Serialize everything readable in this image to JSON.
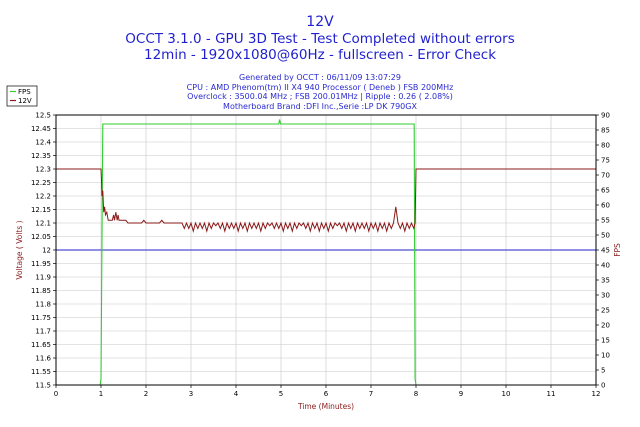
{
  "header": {
    "line1": "12V",
    "line2": "OCCT 3.1.0 - GPU 3D Test - Test Completed without errors",
    "line3": "12min - 1920x1080@60Hz - fullscreen - Error Check"
  },
  "info": [
    "Generated by OCCT : 06/11/09 13:07:29",
    "CPU : AMD Phenom(tm) II X4 940 Processor ( Deneb ) FSB 200MHz",
    "Overclock : 3500.04 MHz ; FSB 200.01MHz | Ripple : 0.26 ( 2.08%)",
    "Motherboard Brand :DFI Inc.,Serie :LP DK 790GX"
  ],
  "colors": {
    "fps": "#33cc33",
    "v12": "#8b1a1a",
    "reference": "#2222cc",
    "grid": "#c8c8c8"
  },
  "chart_data": {
    "type": "line",
    "xlabel": "Time (Minutes)",
    "ylabel_left": "Voltage ( Volts )",
    "ylabel_right": "FPS",
    "xlim": [
      0,
      12
    ],
    "ylim_left": [
      11.5,
      12.5
    ],
    "ylim_right": [
      0,
      90
    ],
    "x_ticks": [
      0,
      1,
      2,
      3,
      4,
      5,
      6,
      7,
      8,
      9,
      10,
      11,
      12
    ],
    "y_left_ticks": [
      11.5,
      11.55,
      11.6,
      11.65,
      11.7,
      11.75,
      11.8,
      11.85,
      11.9,
      11.95,
      12,
      12.05,
      12.1,
      12.15,
      12.2,
      12.25,
      12.3,
      12.35,
      12.4,
      12.45,
      12.5
    ],
    "y_right_ticks": [
      0,
      5,
      10,
      15,
      20,
      25,
      30,
      35,
      40,
      45,
      50,
      55,
      60,
      65,
      70,
      75,
      80,
      85,
      90
    ],
    "grid": true,
    "legend": {
      "placement": "top-left",
      "entries": [
        "FPS",
        "12V"
      ]
    },
    "reference_line": {
      "axis": "left",
      "y": 12.0
    },
    "series": [
      {
        "name": "FPS",
        "axis": "right",
        "points": [
          [
            0,
            0
          ],
          [
            0.98,
            0
          ],
          [
            1.0,
            2
          ],
          [
            1.04,
            87
          ],
          [
            4.95,
            87
          ],
          [
            4.97,
            88.5
          ],
          [
            4.99,
            87
          ],
          [
            7.96,
            87
          ],
          [
            7.98,
            2
          ],
          [
            8.0,
            0
          ],
          [
            12,
            0
          ]
        ]
      },
      {
        "name": "12V",
        "axis": "left",
        "points": [
          [
            0,
            12.3
          ],
          [
            1.0,
            12.3
          ],
          [
            1.01,
            12.26
          ],
          [
            1.02,
            12.2
          ],
          [
            1.04,
            12.22
          ],
          [
            1.06,
            12.14
          ],
          [
            1.08,
            12.16
          ],
          [
            1.1,
            12.13
          ],
          [
            1.13,
            12.14
          ],
          [
            1.16,
            12.11
          ],
          [
            1.25,
            12.11
          ],
          [
            1.28,
            12.13
          ],
          [
            1.3,
            12.11
          ],
          [
            1.33,
            12.14
          ],
          [
            1.36,
            12.11
          ],
          [
            1.38,
            12.13
          ],
          [
            1.4,
            12.11
          ],
          [
            1.55,
            12.11
          ],
          [
            1.6,
            12.1
          ],
          [
            1.9,
            12.1
          ],
          [
            1.95,
            12.11
          ],
          [
            2.0,
            12.1
          ],
          [
            2.3,
            12.1
          ],
          [
            2.35,
            12.11
          ],
          [
            2.4,
            12.1
          ],
          [
            2.7,
            12.1
          ],
          [
            2.8,
            12.1
          ],
          [
            2.85,
            12.08
          ],
          [
            2.9,
            12.1
          ],
          [
            2.95,
            12.08
          ],
          [
            3.0,
            12.1
          ],
          [
            3.05,
            12.07
          ],
          [
            3.1,
            12.1
          ],
          [
            3.15,
            12.08
          ],
          [
            3.2,
            12.1
          ],
          [
            3.25,
            12.08
          ],
          [
            3.3,
            12.1
          ],
          [
            3.35,
            12.07
          ],
          [
            3.4,
            12.1
          ],
          [
            3.45,
            12.08
          ],
          [
            3.5,
            12.1
          ],
          [
            3.55,
            12.09
          ],
          [
            3.6,
            12.1
          ],
          [
            3.65,
            12.08
          ],
          [
            3.7,
            12.1
          ],
          [
            3.75,
            12.07
          ],
          [
            3.8,
            12.1
          ],
          [
            3.85,
            12.08
          ],
          [
            3.9,
            12.1
          ],
          [
            3.95,
            12.08
          ],
          [
            4.0,
            12.1
          ],
          [
            4.05,
            12.07
          ],
          [
            4.1,
            12.1
          ],
          [
            4.15,
            12.08
          ],
          [
            4.2,
            12.1
          ],
          [
            4.25,
            12.07
          ],
          [
            4.3,
            12.1
          ],
          [
            4.35,
            12.08
          ],
          [
            4.4,
            12.1
          ],
          [
            4.45,
            12.08
          ],
          [
            4.5,
            12.1
          ],
          [
            4.55,
            12.07
          ],
          [
            4.6,
            12.1
          ],
          [
            4.65,
            12.08
          ],
          [
            4.7,
            12.1
          ],
          [
            4.75,
            12.09
          ],
          [
            4.8,
            12.1
          ],
          [
            4.85,
            12.08
          ],
          [
            4.9,
            12.1
          ],
          [
            4.95,
            12.08
          ],
          [
            5.0,
            12.1
          ],
          [
            5.05,
            12.07
          ],
          [
            5.1,
            12.1
          ],
          [
            5.15,
            12.08
          ],
          [
            5.2,
            12.1
          ],
          [
            5.25,
            12.07
          ],
          [
            5.3,
            12.1
          ],
          [
            5.35,
            12.08
          ],
          [
            5.4,
            12.1
          ],
          [
            5.45,
            12.09
          ],
          [
            5.5,
            12.1
          ],
          [
            5.55,
            12.08
          ],
          [
            5.6,
            12.1
          ],
          [
            5.65,
            12.07
          ],
          [
            5.7,
            12.1
          ],
          [
            5.75,
            12.08
          ],
          [
            5.8,
            12.1
          ],
          [
            5.85,
            12.07
          ],
          [
            5.9,
            12.1
          ],
          [
            5.95,
            12.08
          ],
          [
            6.0,
            12.1
          ],
          [
            6.05,
            12.07
          ],
          [
            6.1,
            12.1
          ],
          [
            6.15,
            12.08
          ],
          [
            6.2,
            12.1
          ],
          [
            6.25,
            12.09
          ],
          [
            6.3,
            12.1
          ],
          [
            6.35,
            12.08
          ],
          [
            6.4,
            12.1
          ],
          [
            6.45,
            12.07
          ],
          [
            6.5,
            12.1
          ],
          [
            6.55,
            12.08
          ],
          [
            6.6,
            12.1
          ],
          [
            6.65,
            12.07
          ],
          [
            6.7,
            12.1
          ],
          [
            6.75,
            12.08
          ],
          [
            6.8,
            12.1
          ],
          [
            6.85,
            12.08
          ],
          [
            6.9,
            12.1
          ],
          [
            6.95,
            12.07
          ],
          [
            7.0,
            12.1
          ],
          [
            7.05,
            12.08
          ],
          [
            7.1,
            12.1
          ],
          [
            7.15,
            12.07
          ],
          [
            7.2,
            12.1
          ],
          [
            7.25,
            12.08
          ],
          [
            7.3,
            12.1
          ],
          [
            7.35,
            12.07
          ],
          [
            7.4,
            12.1
          ],
          [
            7.45,
            12.08
          ],
          [
            7.5,
            12.1
          ],
          [
            7.55,
            12.16
          ],
          [
            7.6,
            12.1
          ],
          [
            7.65,
            12.08
          ],
          [
            7.7,
            12.1
          ],
          [
            7.75,
            12.07
          ],
          [
            7.8,
            12.1
          ],
          [
            7.85,
            12.08
          ],
          [
            7.9,
            12.1
          ],
          [
            7.95,
            12.08
          ],
          [
            7.98,
            12.1
          ],
          [
            8.0,
            12.3
          ],
          [
            12,
            12.3
          ]
        ]
      }
    ]
  }
}
